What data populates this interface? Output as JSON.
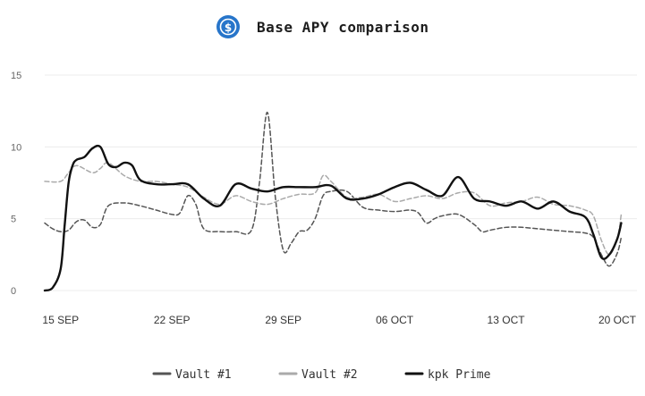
{
  "header": {
    "title": "Base APY comparison",
    "icon": "usdc-dollar-coin-icon",
    "icon_color": "#2775CA"
  },
  "chart_data": {
    "type": "line",
    "title": "Base APY comparison",
    "xlabel": "",
    "ylabel": "",
    "ylim": [
      0,
      15
    ],
    "xlim": [
      "2024-09-14",
      "2024-10-20"
    ],
    "y_ticks": [
      "0",
      "5",
      "10",
      "15"
    ],
    "x_ticks": [
      {
        "date": "2024-09-15",
        "label": "15 SEP"
      },
      {
        "date": "2024-09-22",
        "label": "22 SEP"
      },
      {
        "date": "2024-09-29",
        "label": "29 SEP"
      },
      {
        "date": "2024-10-06",
        "label": "06 OCT"
      },
      {
        "date": "2024-10-13",
        "label": "13 OCT"
      },
      {
        "date": "2024-10-20",
        "label": "20 OCT"
      }
    ],
    "grid": "horizontal",
    "legend_position": "bottom",
    "series": [
      {
        "name": "Vault #1",
        "color": "#555555",
        "style": "dashed",
        "points": [
          [
            "2024-09-14",
            4.7
          ],
          [
            "2024-09-14T12:00",
            4.3
          ],
          [
            "2024-09-15",
            4.1
          ],
          [
            "2024-09-15T12:00",
            4.2
          ],
          [
            "2024-09-16",
            4.8
          ],
          [
            "2024-09-16T12:00",
            4.9
          ],
          [
            "2024-09-17",
            4.4
          ],
          [
            "2024-09-17T12:00",
            4.6
          ],
          [
            "2024-09-18",
            5.9
          ],
          [
            "2024-09-19",
            6.1
          ],
          [
            "2024-09-20",
            5.9
          ],
          [
            "2024-09-21",
            5.6
          ],
          [
            "2024-09-22",
            5.3
          ],
          [
            "2024-09-22T12:00",
            5.4
          ],
          [
            "2024-09-23",
            6.6
          ],
          [
            "2024-09-23T12:00",
            6.0
          ],
          [
            "2024-09-24",
            4.3
          ],
          [
            "2024-09-25",
            4.1
          ],
          [
            "2024-09-26",
            4.1
          ],
          [
            "2024-09-27",
            4.2
          ],
          [
            "2024-09-27T12:00",
            7.5
          ],
          [
            "2024-09-28",
            12.4
          ],
          [
            "2024-09-28T12:00",
            6.5
          ],
          [
            "2024-09-29",
            2.8
          ],
          [
            "2024-09-29T12:00",
            3.3
          ],
          [
            "2024-09-30",
            4.1
          ],
          [
            "2024-09-30T12:00",
            4.2
          ],
          [
            "2024-10-01",
            5.0
          ],
          [
            "2024-10-01T12:00",
            6.6
          ],
          [
            "2024-10-02",
            6.9
          ],
          [
            "2024-10-03",
            6.9
          ],
          [
            "2024-10-04",
            5.8
          ],
          [
            "2024-10-05",
            5.6
          ],
          [
            "2024-10-06",
            5.5
          ],
          [
            "2024-10-07",
            5.6
          ],
          [
            "2024-10-07T12:00",
            5.4
          ],
          [
            "2024-10-08",
            4.7
          ],
          [
            "2024-10-08T12:00",
            5.0
          ],
          [
            "2024-10-09",
            5.2
          ],
          [
            "2024-10-10",
            5.3
          ],
          [
            "2024-10-11",
            4.6
          ],
          [
            "2024-10-11T12:00",
            4.1
          ],
          [
            "2024-10-12",
            4.2
          ],
          [
            "2024-10-13",
            4.4
          ],
          [
            "2024-10-14",
            4.4
          ],
          [
            "2024-10-15",
            4.3
          ],
          [
            "2024-10-16",
            4.2
          ],
          [
            "2024-10-17",
            4.1
          ],
          [
            "2024-10-18",
            4.0
          ],
          [
            "2024-10-18T12:00",
            3.7
          ],
          [
            "2024-10-19",
            2.5
          ],
          [
            "2024-10-19T12:00",
            1.7
          ],
          [
            "2024-10-20",
            2.6
          ],
          [
            "2024-10-20T06:00",
            3.7
          ]
        ]
      },
      {
        "name": "Vault #2",
        "color": "#aaaaaa",
        "style": "dashed",
        "points": [
          [
            "2024-09-14",
            7.6
          ],
          [
            "2024-09-15",
            7.6
          ],
          [
            "2024-09-15T12:00",
            8.2
          ],
          [
            "2024-09-16",
            8.7
          ],
          [
            "2024-09-17",
            8.2
          ],
          [
            "2024-09-17T12:00",
            8.5
          ],
          [
            "2024-09-18",
            8.9
          ],
          [
            "2024-09-19",
            8.0
          ],
          [
            "2024-09-20",
            7.6
          ],
          [
            "2024-09-21",
            7.6
          ],
          [
            "2024-09-22",
            7.4
          ],
          [
            "2024-09-23",
            7.2
          ],
          [
            "2024-09-24",
            6.5
          ],
          [
            "2024-09-25",
            6.0
          ],
          [
            "2024-09-26",
            6.6
          ],
          [
            "2024-09-27",
            6.2
          ],
          [
            "2024-09-28",
            6.0
          ],
          [
            "2024-09-29",
            6.4
          ],
          [
            "2024-09-30",
            6.7
          ],
          [
            "2024-10-01",
            6.8
          ],
          [
            "2024-10-01T12:00",
            8.0
          ],
          [
            "2024-10-02",
            7.6
          ],
          [
            "2024-10-03",
            6.5
          ],
          [
            "2024-10-04",
            6.5
          ],
          [
            "2024-10-05",
            6.7
          ],
          [
            "2024-10-06",
            6.2
          ],
          [
            "2024-10-07",
            6.4
          ],
          [
            "2024-10-08",
            6.6
          ],
          [
            "2024-10-09",
            6.4
          ],
          [
            "2024-10-10",
            6.8
          ],
          [
            "2024-10-11",
            6.8
          ],
          [
            "2024-10-12",
            5.9
          ],
          [
            "2024-10-13",
            6.1
          ],
          [
            "2024-10-14",
            6.2
          ],
          [
            "2024-10-15",
            6.5
          ],
          [
            "2024-10-16",
            6.0
          ],
          [
            "2024-10-17",
            5.9
          ],
          [
            "2024-10-18",
            5.6
          ],
          [
            "2024-10-18T12:00",
            5.2
          ],
          [
            "2024-10-19",
            3.5
          ],
          [
            "2024-10-19T12:00",
            2.5
          ],
          [
            "2024-10-20",
            3.6
          ],
          [
            "2024-10-20T06:00",
            5.3
          ]
        ]
      },
      {
        "name": "kpk Prime",
        "color": "#111111",
        "style": "solid",
        "points": [
          [
            "2024-09-14",
            0.0
          ],
          [
            "2024-09-14T12:00",
            0.2
          ],
          [
            "2024-09-15",
            1.5
          ],
          [
            "2024-09-15T06:00",
            4.5
          ],
          [
            "2024-09-15T12:00",
            7.5
          ],
          [
            "2024-09-15T18:00",
            8.7
          ],
          [
            "2024-09-16",
            9.1
          ],
          [
            "2024-09-16T12:00",
            9.3
          ],
          [
            "2024-09-17",
            9.9
          ],
          [
            "2024-09-17T12:00",
            10.0
          ],
          [
            "2024-09-18",
            8.8
          ],
          [
            "2024-09-18T12:00",
            8.6
          ],
          [
            "2024-09-19",
            8.9
          ],
          [
            "2024-09-19T12:00",
            8.7
          ],
          [
            "2024-09-20",
            7.7
          ],
          [
            "2024-09-21",
            7.4
          ],
          [
            "2024-09-22",
            7.4
          ],
          [
            "2024-09-23",
            7.4
          ],
          [
            "2024-09-24",
            6.4
          ],
          [
            "2024-09-25",
            5.9
          ],
          [
            "2024-09-26",
            7.4
          ],
          [
            "2024-09-27",
            7.1
          ],
          [
            "2024-09-28",
            6.9
          ],
          [
            "2024-09-29",
            7.2
          ],
          [
            "2024-09-30",
            7.2
          ],
          [
            "2024-10-01",
            7.2
          ],
          [
            "2024-10-02",
            7.3
          ],
          [
            "2024-10-03",
            6.4
          ],
          [
            "2024-10-04",
            6.4
          ],
          [
            "2024-10-05",
            6.7
          ],
          [
            "2024-10-06",
            7.2
          ],
          [
            "2024-10-07",
            7.5
          ],
          [
            "2024-10-08",
            7.0
          ],
          [
            "2024-10-09",
            6.6
          ],
          [
            "2024-10-10",
            7.9
          ],
          [
            "2024-10-11",
            6.4
          ],
          [
            "2024-10-12",
            6.2
          ],
          [
            "2024-10-13",
            5.9
          ],
          [
            "2024-10-14",
            6.2
          ],
          [
            "2024-10-15",
            5.7
          ],
          [
            "2024-10-16",
            6.2
          ],
          [
            "2024-10-17",
            5.5
          ],
          [
            "2024-10-18",
            5.1
          ],
          [
            "2024-10-18T12:00",
            3.9
          ],
          [
            "2024-10-19",
            2.3
          ],
          [
            "2024-10-19T12:00",
            2.5
          ],
          [
            "2024-10-20",
            3.6
          ],
          [
            "2024-10-20T06:00",
            4.7
          ]
        ]
      }
    ]
  }
}
